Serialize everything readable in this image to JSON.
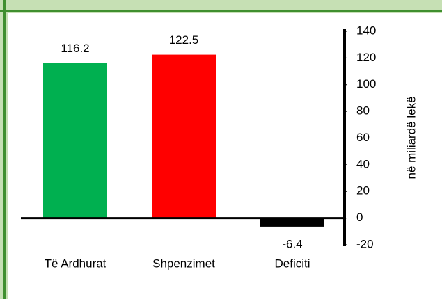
{
  "chart_data": {
    "type": "bar",
    "categories": [
      "Të Ardhurat",
      "Shpenzimet",
      "Deficiti"
    ],
    "values": [
      116.2,
      122.5,
      -6.4
    ],
    "colors": [
      "#00b050",
      "#ff0000",
      "#000000"
    ],
    "ylim": [
      -20,
      140
    ],
    "yticks": [
      -20,
      0,
      20,
      40,
      60,
      80,
      100,
      120,
      140
    ],
    "ylabel": "në miliardë lekë",
    "grid": false
  }
}
